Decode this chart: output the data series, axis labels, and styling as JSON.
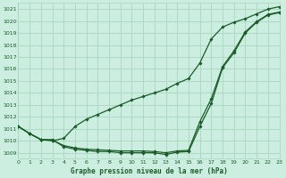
{
  "title": "Graphe pression niveau de la mer (hPa)",
  "bg_color": "#cceee0",
  "grid_color": "#aad4c0",
  "line_color": "#1a5c28",
  "xmin": 0,
  "xmax": 23,
  "ymin": 1008.5,
  "ymax": 1021.5,
  "yticks": [
    1009,
    1010,
    1011,
    1012,
    1013,
    1014,
    1015,
    1016,
    1017,
    1018,
    1019,
    1020,
    1021
  ],
  "xticks": [
    0,
    1,
    2,
    3,
    4,
    5,
    6,
    7,
    8,
    9,
    10,
    11,
    12,
    13,
    14,
    15,
    16,
    17,
    18,
    19,
    20,
    21,
    22,
    23
  ],
  "line1_x": [
    0,
    1,
    2,
    3,
    4,
    5,
    6,
    7,
    8,
    9,
    10,
    11,
    12,
    13,
    14,
    15,
    16,
    17,
    18,
    19,
    20,
    21,
    22,
    23
  ],
  "line1": [
    1011.2,
    1010.6,
    1010.1,
    1010.1,
    1009.5,
    1009.3,
    1009.2,
    1009.1,
    1009.1,
    1009.0,
    1009.0,
    1009.0,
    1009.0,
    1008.85,
    1009.05,
    1009.1,
    1011.2,
    1013.1,
    1016.1,
    1017.35,
    1019.0,
    1019.9,
    1020.5,
    1020.7
  ],
  "line2_x": [
    0,
    1,
    2,
    3,
    4,
    5,
    6,
    7,
    8,
    9,
    10,
    11,
    12,
    13,
    14,
    15,
    16,
    17,
    18,
    19,
    20,
    21,
    22,
    23
  ],
  "line2": [
    1011.2,
    1010.6,
    1010.1,
    1010.05,
    1009.6,
    1009.4,
    1009.3,
    1009.25,
    1009.2,
    1009.15,
    1009.15,
    1009.15,
    1009.1,
    1009.0,
    1009.15,
    1009.2,
    1011.6,
    1013.5,
    1016.2,
    1017.5,
    1019.1,
    1019.95,
    1020.55,
    1020.75
  ],
  "line3_x": [
    0,
    1,
    2,
    3,
    4,
    5,
    6,
    7,
    8,
    9,
    10,
    11,
    12,
    13,
    14,
    15,
    16,
    17,
    18,
    19,
    20,
    21,
    22,
    23
  ],
  "line3": [
    1011.2,
    1010.6,
    1010.1,
    1010.0,
    1010.2,
    1011.2,
    1011.8,
    1012.2,
    1012.6,
    1013.0,
    1013.4,
    1013.7,
    1014.0,
    1014.3,
    1014.8,
    1015.2,
    1016.5,
    1018.5,
    1019.5,
    1019.9,
    1020.2,
    1020.6,
    1021.0,
    1021.2
  ]
}
